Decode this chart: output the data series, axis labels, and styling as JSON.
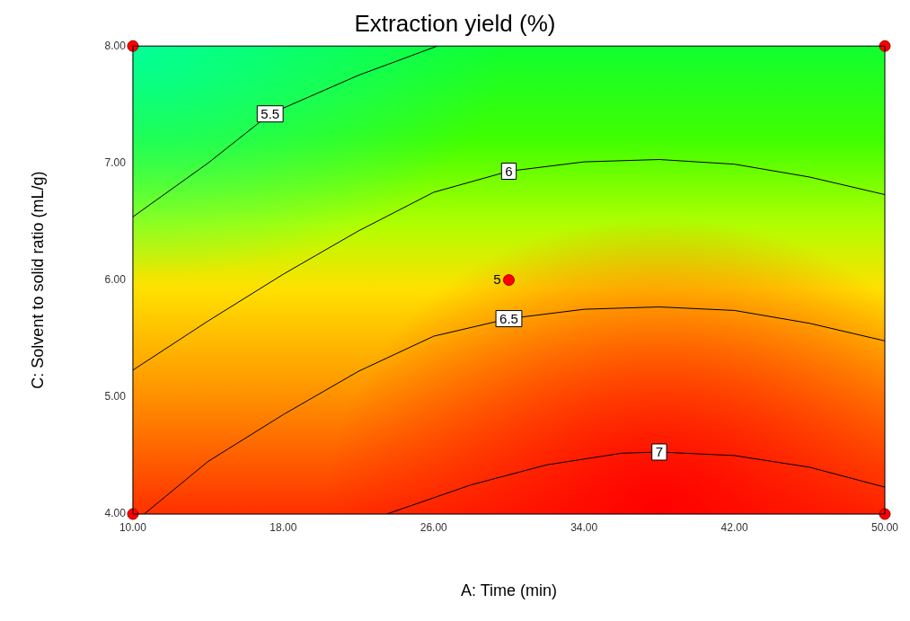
{
  "chart_data": {
    "type": "line",
    "title": "Extraction yield (%)",
    "xlabel": "A: Time (min)",
    "ylabel": "C: Solvent to solid ratio (mL/g)",
    "xlim": [
      10,
      50
    ],
    "ylim": [
      4,
      8
    ],
    "xticks": [
      {
        "value": 10,
        "label": "10.00"
      },
      {
        "value": 18,
        "label": "18.00"
      },
      {
        "value": 26,
        "label": "26.00"
      },
      {
        "value": 34,
        "label": "34.00"
      },
      {
        "value": 42,
        "label": "42.00"
      },
      {
        "value": 50,
        "label": "50.00"
      }
    ],
    "yticks": [
      {
        "value": 4,
        "label": "4.00"
      },
      {
        "value": 5,
        "label": "5.00"
      },
      {
        "value": 6,
        "label": "6.00"
      },
      {
        "value": 7,
        "label": "7.00"
      },
      {
        "value": 8,
        "label": "8.00"
      }
    ],
    "grid": false,
    "legend": false,
    "series": [
      {
        "name": "5.5",
        "color": "#000000",
        "x": [
          10,
          14,
          17.3,
          22,
          26.2
        ],
        "values": [
          6.54,
          7.0,
          7.42,
          7.75,
          8.0
        ]
      },
      {
        "name": "6",
        "color": "#000000",
        "x": [
          10,
          14,
          18,
          22,
          26,
          30,
          34,
          38,
          42,
          46,
          50
        ],
        "values": [
          5.23,
          5.65,
          6.05,
          6.42,
          6.75,
          6.93,
          7.01,
          7.03,
          6.99,
          6.88,
          6.73
        ]
      },
      {
        "name": "6.5",
        "color": "#000000",
        "x": [
          10.6,
          14,
          18,
          22,
          26,
          30,
          34,
          38,
          42,
          46,
          50
        ],
        "values": [
          4,
          4.45,
          4.85,
          5.22,
          5.52,
          5.67,
          5.75,
          5.77,
          5.74,
          5.63,
          5.48
        ]
      },
      {
        "name": "7",
        "color": "#000000",
        "x": [
          23.5,
          28,
          32,
          36,
          38,
          42,
          46,
          50
        ],
        "values": [
          4,
          4.25,
          4.42,
          4.52,
          4.53,
          4.5,
          4.4,
          4.23
        ]
      },
      {
        "type": "scatter",
        "color": "#ff0000",
        "marker": "circle",
        "x": [
          10,
          10,
          50,
          50,
          30
        ],
        "values": [
          4,
          8,
          4,
          8,
          6
        ]
      }
    ],
    "annotations": [
      {
        "text": "5",
        "x": 30,
        "y": 6
      }
    ]
  }
}
